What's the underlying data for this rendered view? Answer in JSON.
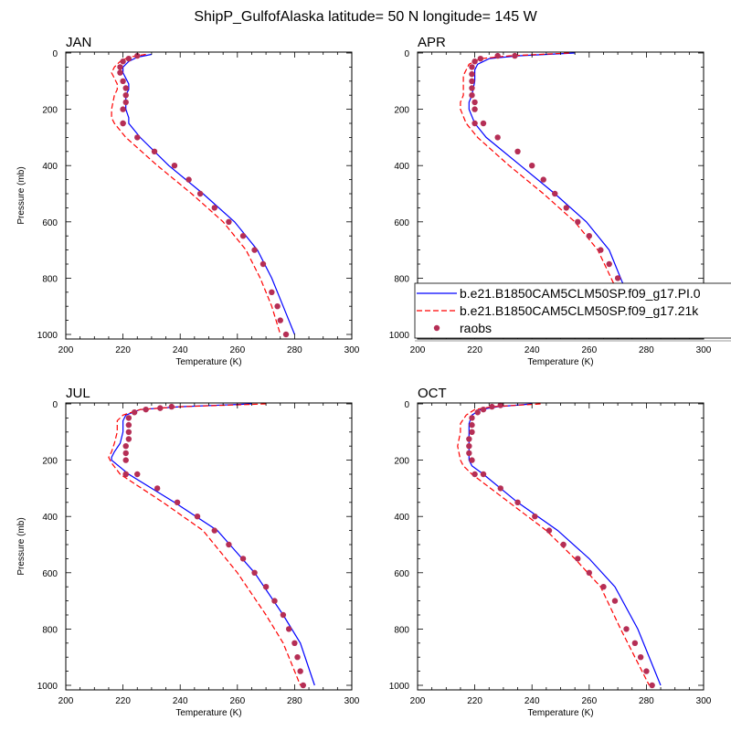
{
  "title": "ShipP_GulfofAlaska  latitude= 50 N longitude= 145 W",
  "colors": {
    "pi": "#0000ff",
    "k21": "#ff0000",
    "obs": "#b52e55"
  },
  "legend": {
    "entries": [
      {
        "label": "b.e21.B1850CAM5CLM50SP.f09_g17.PI.0",
        "style": "solid-blue"
      },
      {
        "label": "b.e21.B1850CAM5CLM50SP.f09_g17.21k",
        "style": "dashed-red"
      },
      {
        "label": "raobs",
        "style": "dot"
      }
    ]
  },
  "chart_data": [
    {
      "type": "line",
      "panel": "JAN",
      "title": "JAN",
      "xlabel": "Temperature (K)",
      "ylabel": "Pressure (mb)",
      "xlim": [
        200,
        300
      ],
      "ylim": [
        1000,
        0
      ],
      "xticks": [
        200,
        220,
        240,
        260,
        280,
        300
      ],
      "yticks": [
        0,
        200,
        400,
        600,
        800,
        1000
      ],
      "series": [
        {
          "name": "b.e21.B1850CAM5CLM50SP.f09_g17.PI.0",
          "style": "solid",
          "x": [
            230,
            225,
            222,
            220,
            220,
            221,
            222,
            222,
            221,
            221,
            222,
            222,
            226,
            236,
            248,
            259,
            267,
            272,
            276,
            280
          ],
          "y": [
            5,
            15,
            30,
            50,
            70,
            90,
            110,
            130,
            150,
            200,
            230,
            250,
            300,
            400,
            500,
            600,
            700,
            800,
            900,
            1000
          ]
        },
        {
          "name": "b.e21.B1850CAM5CLM50SP.f09_g17.21k",
          "style": "dashed",
          "x": [
            228,
            222,
            219,
            217,
            216,
            217,
            218,
            218,
            217,
            216,
            216,
            217,
            221,
            232,
            244,
            255,
            263,
            268,
            272,
            275
          ],
          "y": [
            5,
            15,
            30,
            50,
            70,
            90,
            110,
            130,
            150,
            200,
            230,
            250,
            300,
            400,
            500,
            600,
            700,
            800,
            900,
            1000
          ]
        },
        {
          "name": "raobs",
          "style": "points",
          "x": [
            225,
            222,
            220,
            219,
            219,
            220,
            221,
            221,
            221,
            220,
            220,
            220,
            225,
            231,
            238,
            243,
            247,
            252,
            257,
            262,
            266,
            269,
            272,
            274,
            275,
            277
          ],
          "y": [
            10,
            20,
            30,
            50,
            70,
            100,
            125,
            150,
            175,
            200,
            250,
            250,
            300,
            350,
            400,
            450,
            500,
            550,
            600,
            650,
            700,
            750,
            850,
            900,
            950,
            1000
          ]
        }
      ]
    },
    {
      "type": "line",
      "panel": "APR",
      "title": "APR",
      "xlabel": "Temperature (K)",
      "ylabel": "",
      "xlim": [
        200,
        300
      ],
      "ylim": [
        1000,
        0
      ],
      "xticks": [
        200,
        220,
        240,
        260,
        280,
        300
      ],
      "yticks": [
        0,
        200,
        400,
        600,
        800,
        1000
      ],
      "series": [
        {
          "name": "b.e21.B1850CAM5CLM50SP.f09_g17.PI.0",
          "style": "solid",
          "x": [
            255,
            235,
            225,
            221,
            220,
            220,
            220,
            219,
            218,
            218,
            220,
            224,
            236,
            248,
            259,
            267,
            273,
            279
          ],
          "y": [
            0,
            10,
            20,
            40,
            60,
            80,
            100,
            150,
            175,
            200,
            250,
            300,
            400,
            500,
            600,
            700,
            850,
            1000
          ]
        },
        {
          "name": "b.e21.B1850CAM5CLM50SP.f09_g17.21k",
          "style": "dashed",
          "x": [
            253,
            232,
            222,
            218,
            217,
            216,
            216,
            216,
            215,
            215,
            217,
            221,
            232,
            244,
            255,
            263,
            270,
            276
          ],
          "y": [
            0,
            10,
            20,
            40,
            60,
            80,
            100,
            150,
            175,
            200,
            250,
            300,
            400,
            500,
            600,
            700,
            850,
            1000
          ]
        },
        {
          "name": "raobs",
          "style": "points",
          "x": [
            234,
            228,
            222,
            220,
            219,
            219,
            219,
            219,
            219,
            220,
            220,
            220,
            223,
            228,
            235,
            240,
            244,
            248,
            252,
            256,
            260,
            264,
            267,
            270,
            273,
            277
          ],
          "y": [
            10,
            10,
            20,
            30,
            50,
            75,
            100,
            125,
            150,
            175,
            200,
            250,
            250,
            300,
            350,
            400,
            450,
            500,
            550,
            600,
            650,
            700,
            750,
            800,
            900,
            1000
          ]
        }
      ]
    },
    {
      "type": "line",
      "panel": "JUL",
      "title": "JUL",
      "xlabel": "Temperature (K)",
      "ylabel": "Pressure (mb)",
      "xlim": [
        200,
        300
      ],
      "ylim": [
        1000,
        0
      ],
      "xticks": [
        200,
        220,
        240,
        260,
        280,
        300
      ],
      "yticks": [
        0,
        200,
        400,
        600,
        800,
        1000
      ],
      "series": [
        {
          "name": "b.e21.B1850CAM5CLM50SP.f09_g17.PI.0",
          "style": "solid",
          "x": [
            265,
            240,
            226,
            221,
            220,
            220,
            219,
            217,
            216,
            216,
            222,
            238,
            253,
            266,
            276,
            282,
            287
          ],
          "y": [
            0,
            10,
            20,
            40,
            60,
            100,
            140,
            170,
            190,
            200,
            250,
            350,
            450,
            600,
            750,
            850,
            1000
          ]
        },
        {
          "name": "b.e21.B1850CAM5CLM50SP.f09_g17.21k",
          "style": "dashed",
          "x": [
            270,
            240,
            226,
            220,
            218,
            218,
            217,
            216,
            215,
            216,
            219,
            234,
            248,
            260,
            270,
            276,
            282
          ],
          "y": [
            0,
            10,
            20,
            40,
            60,
            100,
            140,
            170,
            190,
            210,
            250,
            350,
            450,
            600,
            750,
            850,
            1000
          ]
        },
        {
          "name": "raobs",
          "style": "points",
          "x": [
            237,
            233,
            228,
            224,
            222,
            222,
            222,
            222,
            221,
            221,
            221,
            221,
            221,
            225,
            232,
            239,
            246,
            252,
            257,
            262,
            266,
            270,
            273,
            276,
            278,
            280,
            281,
            282,
            283
          ],
          "y": [
            10,
            15,
            20,
            30,
            50,
            75,
            100,
            125,
            150,
            175,
            200,
            250,
            250,
            250,
            300,
            350,
            400,
            450,
            500,
            550,
            600,
            650,
            700,
            750,
            800,
            850,
            900,
            950,
            1000
          ]
        }
      ]
    },
    {
      "type": "line",
      "panel": "OCT",
      "title": "OCT",
      "xlabel": "Temperature (K)",
      "ylabel": "",
      "xlim": [
        200,
        300
      ],
      "ylim": [
        1000,
        0
      ],
      "xticks": [
        200,
        220,
        240,
        260,
        280,
        300
      ],
      "yticks": [
        0,
        200,
        400,
        600,
        800,
        1000
      ],
      "series": [
        {
          "name": "b.e21.B1850CAM5CLM50SP.f09_g17.PI.0",
          "style": "solid",
          "x": [
            240,
            228,
            222,
            219,
            218,
            218,
            218,
            218,
            219,
            223,
            235,
            249,
            260,
            269,
            277,
            285
          ],
          "y": [
            0,
            10,
            20,
            40,
            70,
            100,
            150,
            200,
            220,
            250,
            350,
            450,
            550,
            650,
            800,
            1000
          ]
        },
        {
          "name": "b.e21.B1850CAM5CLM50SP.f09_g17.21k",
          "style": "dashed",
          "x": [
            243,
            226,
            220,
            217,
            215,
            215,
            214,
            215,
            216,
            219,
            232,
            245,
            255,
            264,
            271,
            281
          ],
          "y": [
            0,
            10,
            20,
            40,
            70,
            100,
            150,
            200,
            220,
            250,
            350,
            450,
            550,
            650,
            800,
            1000
          ]
        },
        {
          "name": "raobs",
          "style": "points",
          "x": [
            229,
            226,
            223,
            221,
            219,
            219,
            219,
            218,
            218,
            218,
            219,
            220,
            223,
            229,
            235,
            241,
            246,
            251,
            256,
            260,
            265,
            269,
            273,
            276,
            278,
            280,
            282
          ],
          "y": [
            5,
            10,
            20,
            30,
            50,
            75,
            100,
            125,
            150,
            175,
            200,
            250,
            250,
            300,
            350,
            400,
            450,
            500,
            550,
            600,
            650,
            700,
            800,
            850,
            900,
            950,
            1000
          ]
        }
      ]
    }
  ]
}
